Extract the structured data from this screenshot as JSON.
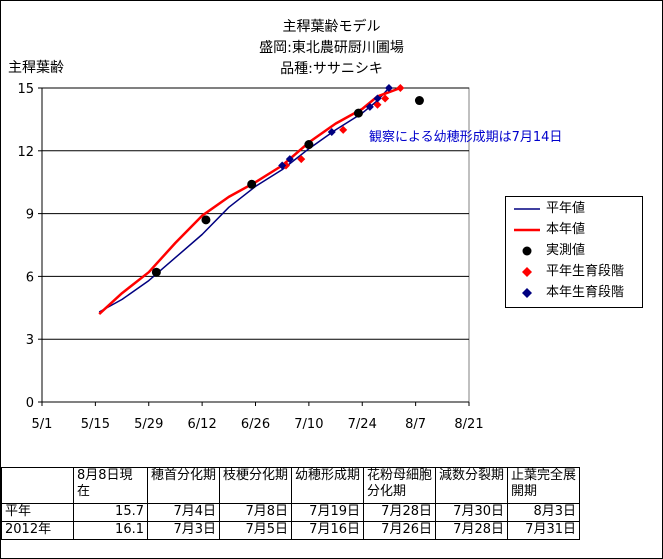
{
  "title_lines": [
    "主稈葉齢モデル",
    "盛岡:東北農研厨川圃場",
    "品種:ササニシキ"
  ],
  "annotation": "観察による幼穂形成期は7月14日",
  "legend": [
    {
      "label": "平年値",
      "color": "#000080",
      "symbol": "line"
    },
    {
      "label": "本年値",
      "color": "#ff0000",
      "symbol": "line"
    },
    {
      "label": "実測値",
      "color": "#000000",
      "symbol": "circle"
    },
    {
      "label": "平年生育段階",
      "color": "#ff0000",
      "symbol": "diamond"
    },
    {
      "label": "本年生育段階",
      "color": "#000080",
      "symbol": "diamond"
    }
  ],
  "chart_data": {
    "type": "line",
    "title": "主稈葉齢モデル",
    "ylabel": "主稈葉齢",
    "xlabel": "",
    "x_axis_type": "date",
    "x_ticks": [
      "5/1",
      "5/15",
      "5/29",
      "6/12",
      "6/26",
      "7/10",
      "7/24",
      "8/7",
      "8/21"
    ],
    "xlim": [
      "5/1",
      "8/21"
    ],
    "ylim": [
      0,
      15
    ],
    "y_ticks": [
      0,
      3,
      6,
      9,
      12,
      15
    ],
    "grid": "horizontal",
    "legend_position": "right",
    "series": [
      {
        "name": "平年値",
        "color": "#000080",
        "type": "line",
        "points": [
          [
            "5/16",
            4.3
          ],
          [
            "5/22",
            4.9
          ],
          [
            "5/29",
            5.8
          ],
          [
            "6/5",
            6.9
          ],
          [
            "6/12",
            8.0
          ],
          [
            "6/19",
            9.3
          ],
          [
            "6/26",
            10.3
          ],
          [
            "7/3",
            11.1
          ],
          [
            "7/10",
            12.1
          ],
          [
            "7/17",
            13.0
          ],
          [
            "7/24",
            13.8
          ],
          [
            "7/28",
            14.4
          ],
          [
            "7/31",
            15.0
          ]
        ]
      },
      {
        "name": "本年値",
        "color": "#ff0000",
        "type": "line",
        "points": [
          [
            "5/16",
            4.2
          ],
          [
            "5/22",
            5.2
          ],
          [
            "5/29",
            6.2
          ],
          [
            "6/5",
            7.6
          ],
          [
            "6/12",
            8.9
          ],
          [
            "6/19",
            9.8
          ],
          [
            "6/26",
            10.5
          ],
          [
            "7/3",
            11.3
          ],
          [
            "7/10",
            12.4
          ],
          [
            "7/17",
            13.3
          ],
          [
            "7/24",
            14.0
          ],
          [
            "7/28",
            14.6
          ],
          [
            "8/3",
            15.0
          ]
        ]
      },
      {
        "name": "実測値",
        "color": "#000000",
        "type": "scatter",
        "marker": "circle",
        "points": [
          [
            "5/31",
            6.2
          ],
          [
            "6/13",
            8.7
          ],
          [
            "6/25",
            10.4
          ],
          [
            "7/10",
            12.3
          ],
          [
            "7/23",
            13.8
          ],
          [
            "8/8",
            14.4
          ]
        ]
      },
      {
        "name": "平年生育段階",
        "color": "#ff0000",
        "type": "scatter",
        "marker": "diamond",
        "points": [
          [
            "7/4",
            11.3
          ],
          [
            "7/8",
            11.6
          ],
          [
            "7/19",
            13.0
          ],
          [
            "7/28",
            14.2
          ],
          [
            "7/30",
            14.5
          ],
          [
            "8/3",
            15.0
          ]
        ]
      },
      {
        "name": "本年生育段階",
        "color": "#000080",
        "type": "scatter",
        "marker": "diamond",
        "points": [
          [
            "7/3",
            11.3
          ],
          [
            "7/5",
            11.6
          ],
          [
            "7/16",
            12.9
          ],
          [
            "7/26",
            14.1
          ],
          [
            "7/28",
            14.5
          ],
          [
            "7/31",
            15.0
          ]
        ]
      }
    ]
  },
  "table": {
    "headers": [
      "",
      "8月8日現在",
      "穂首分化期",
      "枝梗分化期",
      "幼穂形成期",
      "花粉母細胞分化期",
      "減数分裂期",
      "止葉完全展開期"
    ],
    "rows": [
      [
        "平年",
        "15.7",
        "7月4日",
        "7月8日",
        "7月19日",
        "7月28日",
        "7月30日",
        "8月3日"
      ],
      [
        "2012年",
        "16.1",
        "7月3日",
        "7月5日",
        "7月16日",
        "7月26日",
        "7月28日",
        "7月31日"
      ]
    ]
  }
}
